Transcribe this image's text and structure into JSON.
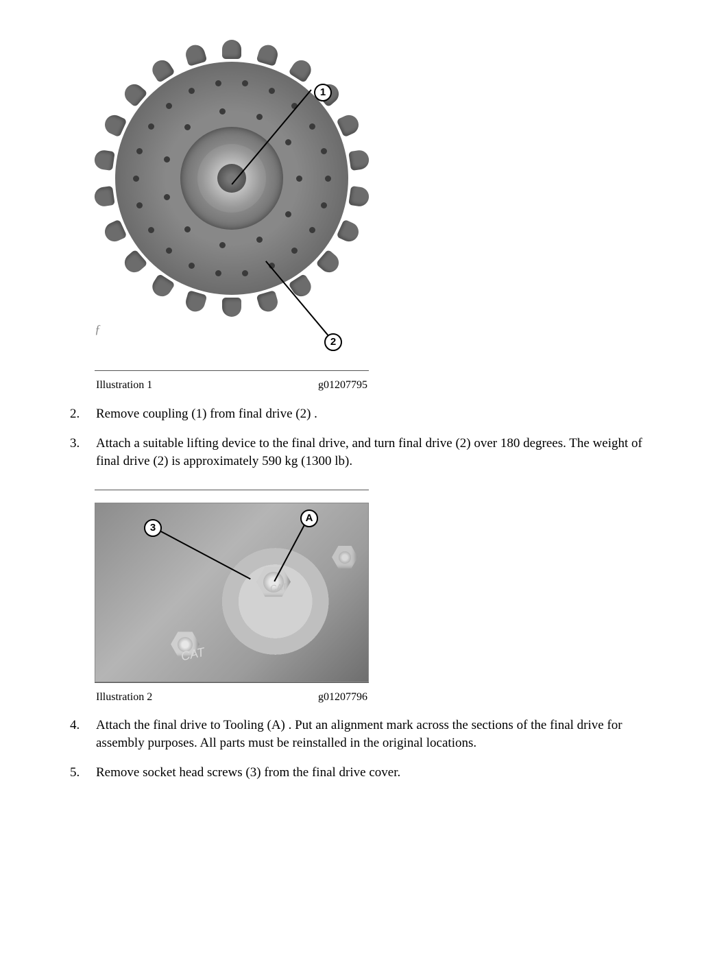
{
  "figure1": {
    "caption_left": "Illustration 1",
    "caption_right": "g01207795",
    "callouts": {
      "c1": "1",
      "c2": "2"
    },
    "sprocket": {
      "tooth_count": 22,
      "bolt_rings": [
        {
          "radius": 140,
          "count": 22
        },
        {
          "radius": 98,
          "count": 11
        }
      ],
      "colors": {
        "body": "#6c6c6c",
        "mid": "#7a7a7a",
        "hub": "#444"
      }
    }
  },
  "figure2": {
    "caption_left": "Illustration 2",
    "caption_right": "g01207796",
    "callouts": {
      "c3": "3",
      "cA": "A"
    }
  },
  "steps": {
    "s2": "Remove coupling (1) from final drive (2) .",
    "s3": "Attach a suitable lifting device to the final drive, and turn final drive (2) over 180 degrees. The weight of final drive (2) is approximately 590 kg (1300 lb).",
    "s4": "Attach the final drive to Tooling (A) . Put an alignment mark across the sections of the final drive for assembly purposes. All parts must be reinstalled in the original locations.",
    "s5": "Remove socket head screws (3) from the final drive cover."
  }
}
